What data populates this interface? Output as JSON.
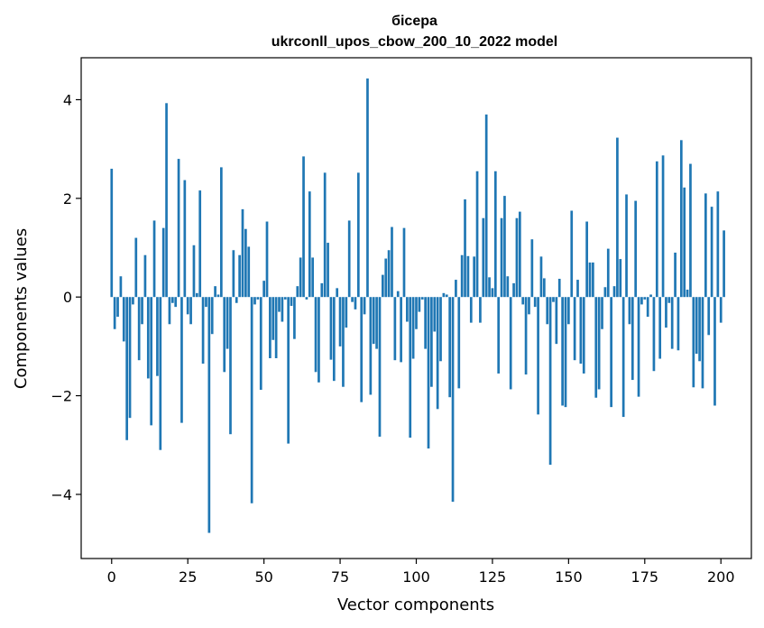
{
  "chart_data": {
    "type": "bar",
    "title": [
      "бісера",
      "ukrconll_upos_cbow_200_10_2022 model"
    ],
    "xlabel": "Vector components",
    "ylabel": "Components values",
    "xlim": [
      -10,
      210
    ],
    "ylim": [
      -5.3,
      4.85
    ],
    "xticks": [
      0,
      25,
      50,
      75,
      100,
      125,
      150,
      175,
      200
    ],
    "yticks": [
      -4,
      -2,
      0,
      2,
      4
    ],
    "xtick_labels": [
      "0",
      "25",
      "50",
      "75",
      "100",
      "125",
      "150",
      "175",
      "200"
    ],
    "ytick_labels": [
      "−4",
      "−2",
      "0",
      "2",
      "4"
    ],
    "grid": false,
    "bar_color": "#1f77b4",
    "values": [
      2.6,
      -0.65,
      -0.4,
      0.42,
      -0.9,
      -2.9,
      -2.45,
      -0.15,
      1.2,
      -1.28,
      -0.55,
      0.85,
      -1.65,
      -2.6,
      1.55,
      -1.6,
      -3.1,
      1.4,
      3.93,
      -0.55,
      -0.12,
      -0.2,
      2.8,
      -2.55,
      2.37,
      -0.35,
      -0.55,
      1.05,
      0.08,
      2.16,
      -1.35,
      -0.2,
      -4.78,
      -0.75,
      0.22,
      0.05,
      2.63,
      -1.52,
      -1.05,
      -2.78,
      0.95,
      -0.12,
      0.85,
      1.78,
      1.38,
      1.02,
      -4.18,
      -0.15,
      -0.05,
      -1.88,
      0.33,
      1.53,
      -1.24,
      -0.87,
      -1.24,
      -0.3,
      -0.5,
      -0.05,
      -2.97,
      -0.18,
      -0.85,
      0.22,
      0.8,
      2.85,
      -0.05,
      2.14,
      0.8,
      -1.52,
      -1.73,
      0.28,
      2.52,
      1.1,
      -1.27,
      -1.7,
      0.18,
      -1.0,
      -1.82,
      -0.62,
      1.55,
      -0.1,
      -0.25,
      2.52,
      -2.13,
      -0.35,
      4.43,
      -1.98,
      -0.95,
      -1.05,
      -2.83,
      0.45,
      0.78,
      0.95,
      1.42,
      -1.28,
      0.12,
      -1.32,
      1.4,
      -0.5,
      -2.85,
      -1.25,
      -0.65,
      -0.3,
      -0.05,
      -1.05,
      -3.07,
      -1.82,
      -0.7,
      -2.27,
      -1.3,
      0.08,
      0.05,
      -2.03,
      -4.15,
      0.35,
      -1.85,
      0.85,
      1.98,
      0.83,
      -0.52,
      0.82,
      2.55,
      -0.52,
      1.6,
      3.7,
      0.4,
      0.18,
      2.55,
      -1.55,
      1.6,
      2.05,
      0.42,
      -1.87,
      0.28,
      1.6,
      1.73,
      -0.15,
      -1.57,
      -0.35,
      1.17,
      -0.2,
      -2.38,
      0.82,
      0.38,
      -0.55,
      -3.4,
      -0.1,
      -0.95,
      0.37,
      -2.2,
      -2.23,
      -0.55,
      1.75,
      -1.28,
      0.35,
      -1.35,
      -1.55,
      1.53,
      0.7,
      0.7,
      -2.04,
      -1.87,
      -0.65,
      0.2,
      0.98,
      -2.23,
      0.22,
      3.23,
      0.77,
      -2.43,
      2.08,
      -0.55,
      -1.68,
      1.95,
      -2.02,
      -0.15,
      -0.05,
      -0.4,
      0.05,
      -1.5,
      2.75,
      -1.25,
      2.87,
      -0.62,
      -0.12,
      -1.05,
      0.9,
      -1.08,
      3.18,
      2.22,
      0.15,
      2.7,
      -1.83,
      -1.15,
      -1.3,
      -1.85,
      2.1,
      -0.77,
      1.83,
      -2.2,
      2.14,
      -0.52,
      1.35
    ]
  }
}
